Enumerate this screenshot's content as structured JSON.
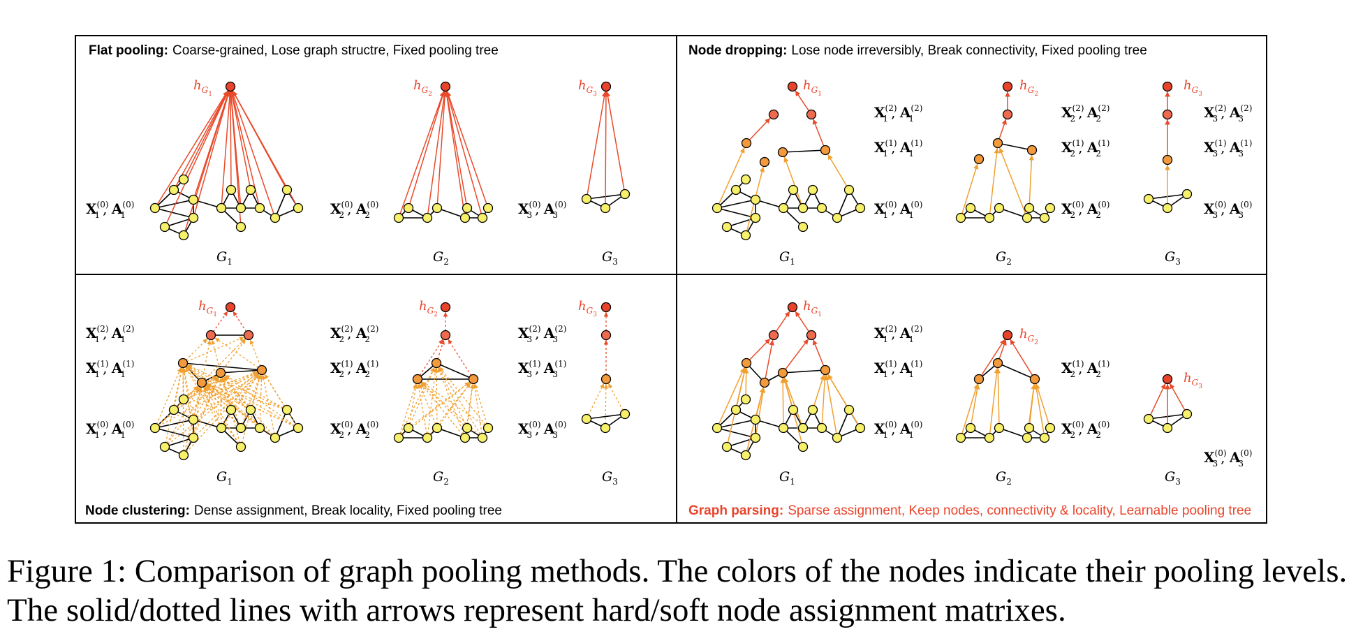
{
  "colors": {
    "frame": "#000000",
    "level0": "#f7f06b",
    "level1": "#f39a3d",
    "level2": "#ef6b50",
    "root": "#e8442b",
    "edge_black": "#000000",
    "edge_orange": "#f0a030",
    "edge_red": "#e84a2a",
    "title_red": "#e8442b"
  },
  "panels": [
    {
      "title_bold": "Flat pooling:",
      "title_rest": "Coarse-grained, Lose graph structre, Fixed pooling tree"
    },
    {
      "title_bold": "Node dropping:",
      "title_rest": "Lose node irreversibly, Break connectivity, Fixed pooling tree"
    },
    {
      "title_bold": "Node clustering:",
      "title_rest": "Dense assignment, Break locality, Fixed pooling tree"
    },
    {
      "title_bold": "Graph parsing:",
      "title_rest": "Sparse assignment, Keep nodes, connectivity & locality, Learnable pooling tree"
    }
  ],
  "math": {
    "X": "X",
    "A": "A",
    "sub1": "1",
    "sub2": "2",
    "sub3": "3",
    "sup0": "(0)",
    "sup1": "(1)",
    "sup2": "(2)",
    "G": "G",
    "h": "h",
    "comma": ", "
  },
  "caption": {
    "line1": "Figure 1: Comparison of graph pooling methods. The colors of the nodes indicate their pooling levels.",
    "line2": "The solid/dotted lines with arrows represent hard/soft node assignment matrixes."
  }
}
